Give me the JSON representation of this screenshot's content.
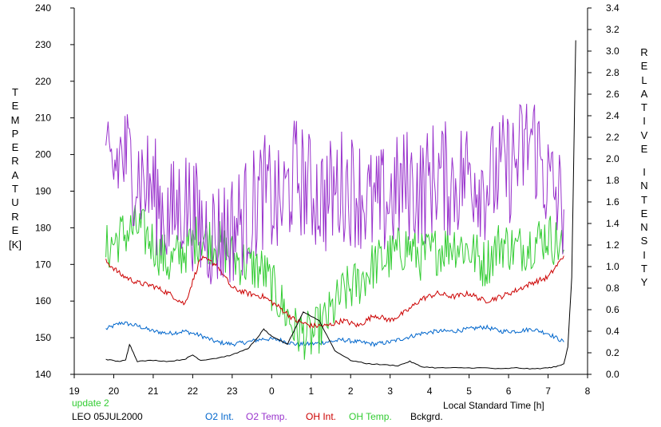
{
  "chart_data": {
    "type": "line",
    "x_tick_labels": [
      "19",
      "20",
      "21",
      "22",
      "23",
      "0",
      "1",
      "2",
      "3",
      "4",
      "5",
      "6",
      "7",
      "8"
    ],
    "x_range_hours": [
      19,
      32
    ],
    "xlabel": "Local Standard Time [h]",
    "left_axis": {
      "label_letters": [
        "T",
        "E",
        "M",
        "P",
        "E",
        "R",
        "A",
        "T",
        "U",
        "R",
        "E"
      ],
      "unit": "[K]",
      "ticks": [
        "140",
        "150",
        "160",
        "170",
        "180",
        "190",
        "200",
        "210",
        "220",
        "230",
        "240"
      ],
      "ylim": [
        140,
        240
      ]
    },
    "right_axis": {
      "label_relative": [
        "R",
        "E",
        "L",
        "A",
        "T",
        "I",
        "V",
        "E"
      ],
      "label_intensity": [
        "I",
        "N",
        "T",
        "E",
        "N",
        "S",
        "I",
        "T",
        "Y"
      ],
      "ticks": [
        "0.0",
        "0.2",
        "0.4",
        "0.6",
        "0.8",
        "1.0",
        "1.2",
        "1.4",
        "1.6",
        "1.8",
        "2.0",
        "2.2",
        "2.4",
        "2.6",
        "2.8",
        "3.0",
        "3.2",
        "3.4"
      ],
      "ylim": [
        0.0,
        3.4
      ]
    },
    "series": [
      {
        "name": "O2 Int.",
        "axis": "right",
        "color": "#0066cc",
        "x": [
          19.8,
          20.2,
          20.6,
          21.0,
          21.4,
          21.8,
          22.2,
          22.6,
          23.0,
          23.4,
          23.8,
          24.2,
          24.6,
          25.0,
          25.4,
          25.8,
          26.2,
          26.6,
          27.0,
          27.4,
          27.8,
          28.2,
          28.6,
          29.0,
          29.4,
          29.8,
          30.2,
          30.6,
          31.0,
          31.4
        ],
        "y": [
          0.42,
          0.48,
          0.45,
          0.4,
          0.38,
          0.4,
          0.36,
          0.3,
          0.28,
          0.3,
          0.33,
          0.32,
          0.28,
          0.28,
          0.3,
          0.32,
          0.3,
          0.28,
          0.3,
          0.34,
          0.38,
          0.4,
          0.4,
          0.42,
          0.44,
          0.4,
          0.4,
          0.42,
          0.38,
          0.3
        ]
      },
      {
        "name": "O2 Temp.",
        "axis": "left",
        "color": "#9933cc",
        "x": [
          19.8,
          20.2,
          20.6,
          21.0,
          21.4,
          21.8,
          22.2,
          22.6,
          23.0,
          23.4,
          23.8,
          24.2,
          24.6,
          25.0,
          25.4,
          25.8,
          26.2,
          26.6,
          27.0,
          27.4,
          27.8,
          28.2,
          28.6,
          29.0,
          29.4,
          29.8,
          30.2,
          30.6,
          31.0,
          31.4
        ],
        "y": [
          192,
          200,
          195,
          190,
          182,
          188,
          180,
          178,
          180,
          184,
          190,
          185,
          195,
          190,
          188,
          192,
          190,
          185,
          188,
          192,
          190,
          195,
          192,
          196,
          192,
          195,
          198,
          205,
          192,
          185
        ]
      },
      {
        "name": "OH Int.",
        "axis": "right",
        "color": "#cc0000",
        "x": [
          19.8,
          20.2,
          20.6,
          21.0,
          21.4,
          21.8,
          22.2,
          22.6,
          23.0,
          23.4,
          23.8,
          24.2,
          24.6,
          25.0,
          25.4,
          25.8,
          26.2,
          26.6,
          27.0,
          27.4,
          27.8,
          28.2,
          28.6,
          29.0,
          29.4,
          29.8,
          30.2,
          30.6,
          31.0,
          31.4
        ],
        "y": [
          1.05,
          0.92,
          0.85,
          0.82,
          0.75,
          0.65,
          1.08,
          1.02,
          0.8,
          0.75,
          0.72,
          0.62,
          0.5,
          0.45,
          0.45,
          0.5,
          0.45,
          0.55,
          0.5,
          0.58,
          0.7,
          0.75,
          0.72,
          0.75,
          0.68,
          0.72,
          0.78,
          0.85,
          0.9,
          1.1
        ]
      },
      {
        "name": "OH Temp.",
        "axis": "left",
        "color": "#33cc33",
        "x": [
          19.8,
          20.2,
          20.6,
          21.0,
          21.4,
          21.8,
          22.2,
          22.6,
          23.0,
          23.4,
          23.8,
          24.2,
          24.6,
          25.0,
          25.4,
          25.8,
          26.2,
          26.6,
          27.0,
          27.4,
          27.8,
          28.2,
          28.6,
          29.0,
          29.4,
          29.8,
          30.2,
          30.6,
          31.0,
          31.4
        ],
        "y": [
          174,
          178,
          180,
          176,
          170,
          174,
          178,
          176,
          172,
          170,
          168,
          160,
          152,
          150,
          155,
          162,
          165,
          170,
          172,
          175,
          172,
          174,
          176,
          174,
          170,
          176,
          174,
          176,
          178,
          174
        ]
      },
      {
        "name": "Bckgrd.",
        "axis": "right",
        "color": "#000000",
        "x": [
          19.8,
          20.1,
          20.3,
          20.4,
          20.6,
          21.0,
          21.4,
          21.8,
          22.0,
          22.2,
          22.6,
          23.0,
          23.4,
          23.6,
          23.8,
          24.0,
          24.4,
          24.8,
          25.2,
          25.6,
          26.0,
          26.4,
          26.8,
          27.2,
          27.5,
          27.8,
          28.2,
          28.6,
          29.0,
          29.4,
          29.8,
          30.2,
          30.6,
          31.0,
          31.2,
          31.4,
          31.5,
          31.6,
          31.7
        ],
        "y": [
          0.14,
          0.12,
          0.13,
          0.28,
          0.12,
          0.13,
          0.12,
          0.14,
          0.18,
          0.13,
          0.15,
          0.18,
          0.24,
          0.32,
          0.42,
          0.35,
          0.28,
          0.58,
          0.5,
          0.22,
          0.13,
          0.1,
          0.09,
          0.08,
          0.12,
          0.07,
          0.06,
          0.06,
          0.06,
          0.06,
          0.05,
          0.06,
          0.05,
          0.06,
          0.07,
          0.1,
          0.25,
          0.9,
          3.1
        ]
      }
    ],
    "legend_placement": "bottom",
    "annotations": [
      "update 2",
      "LEO 05JUL2000"
    ]
  }
}
